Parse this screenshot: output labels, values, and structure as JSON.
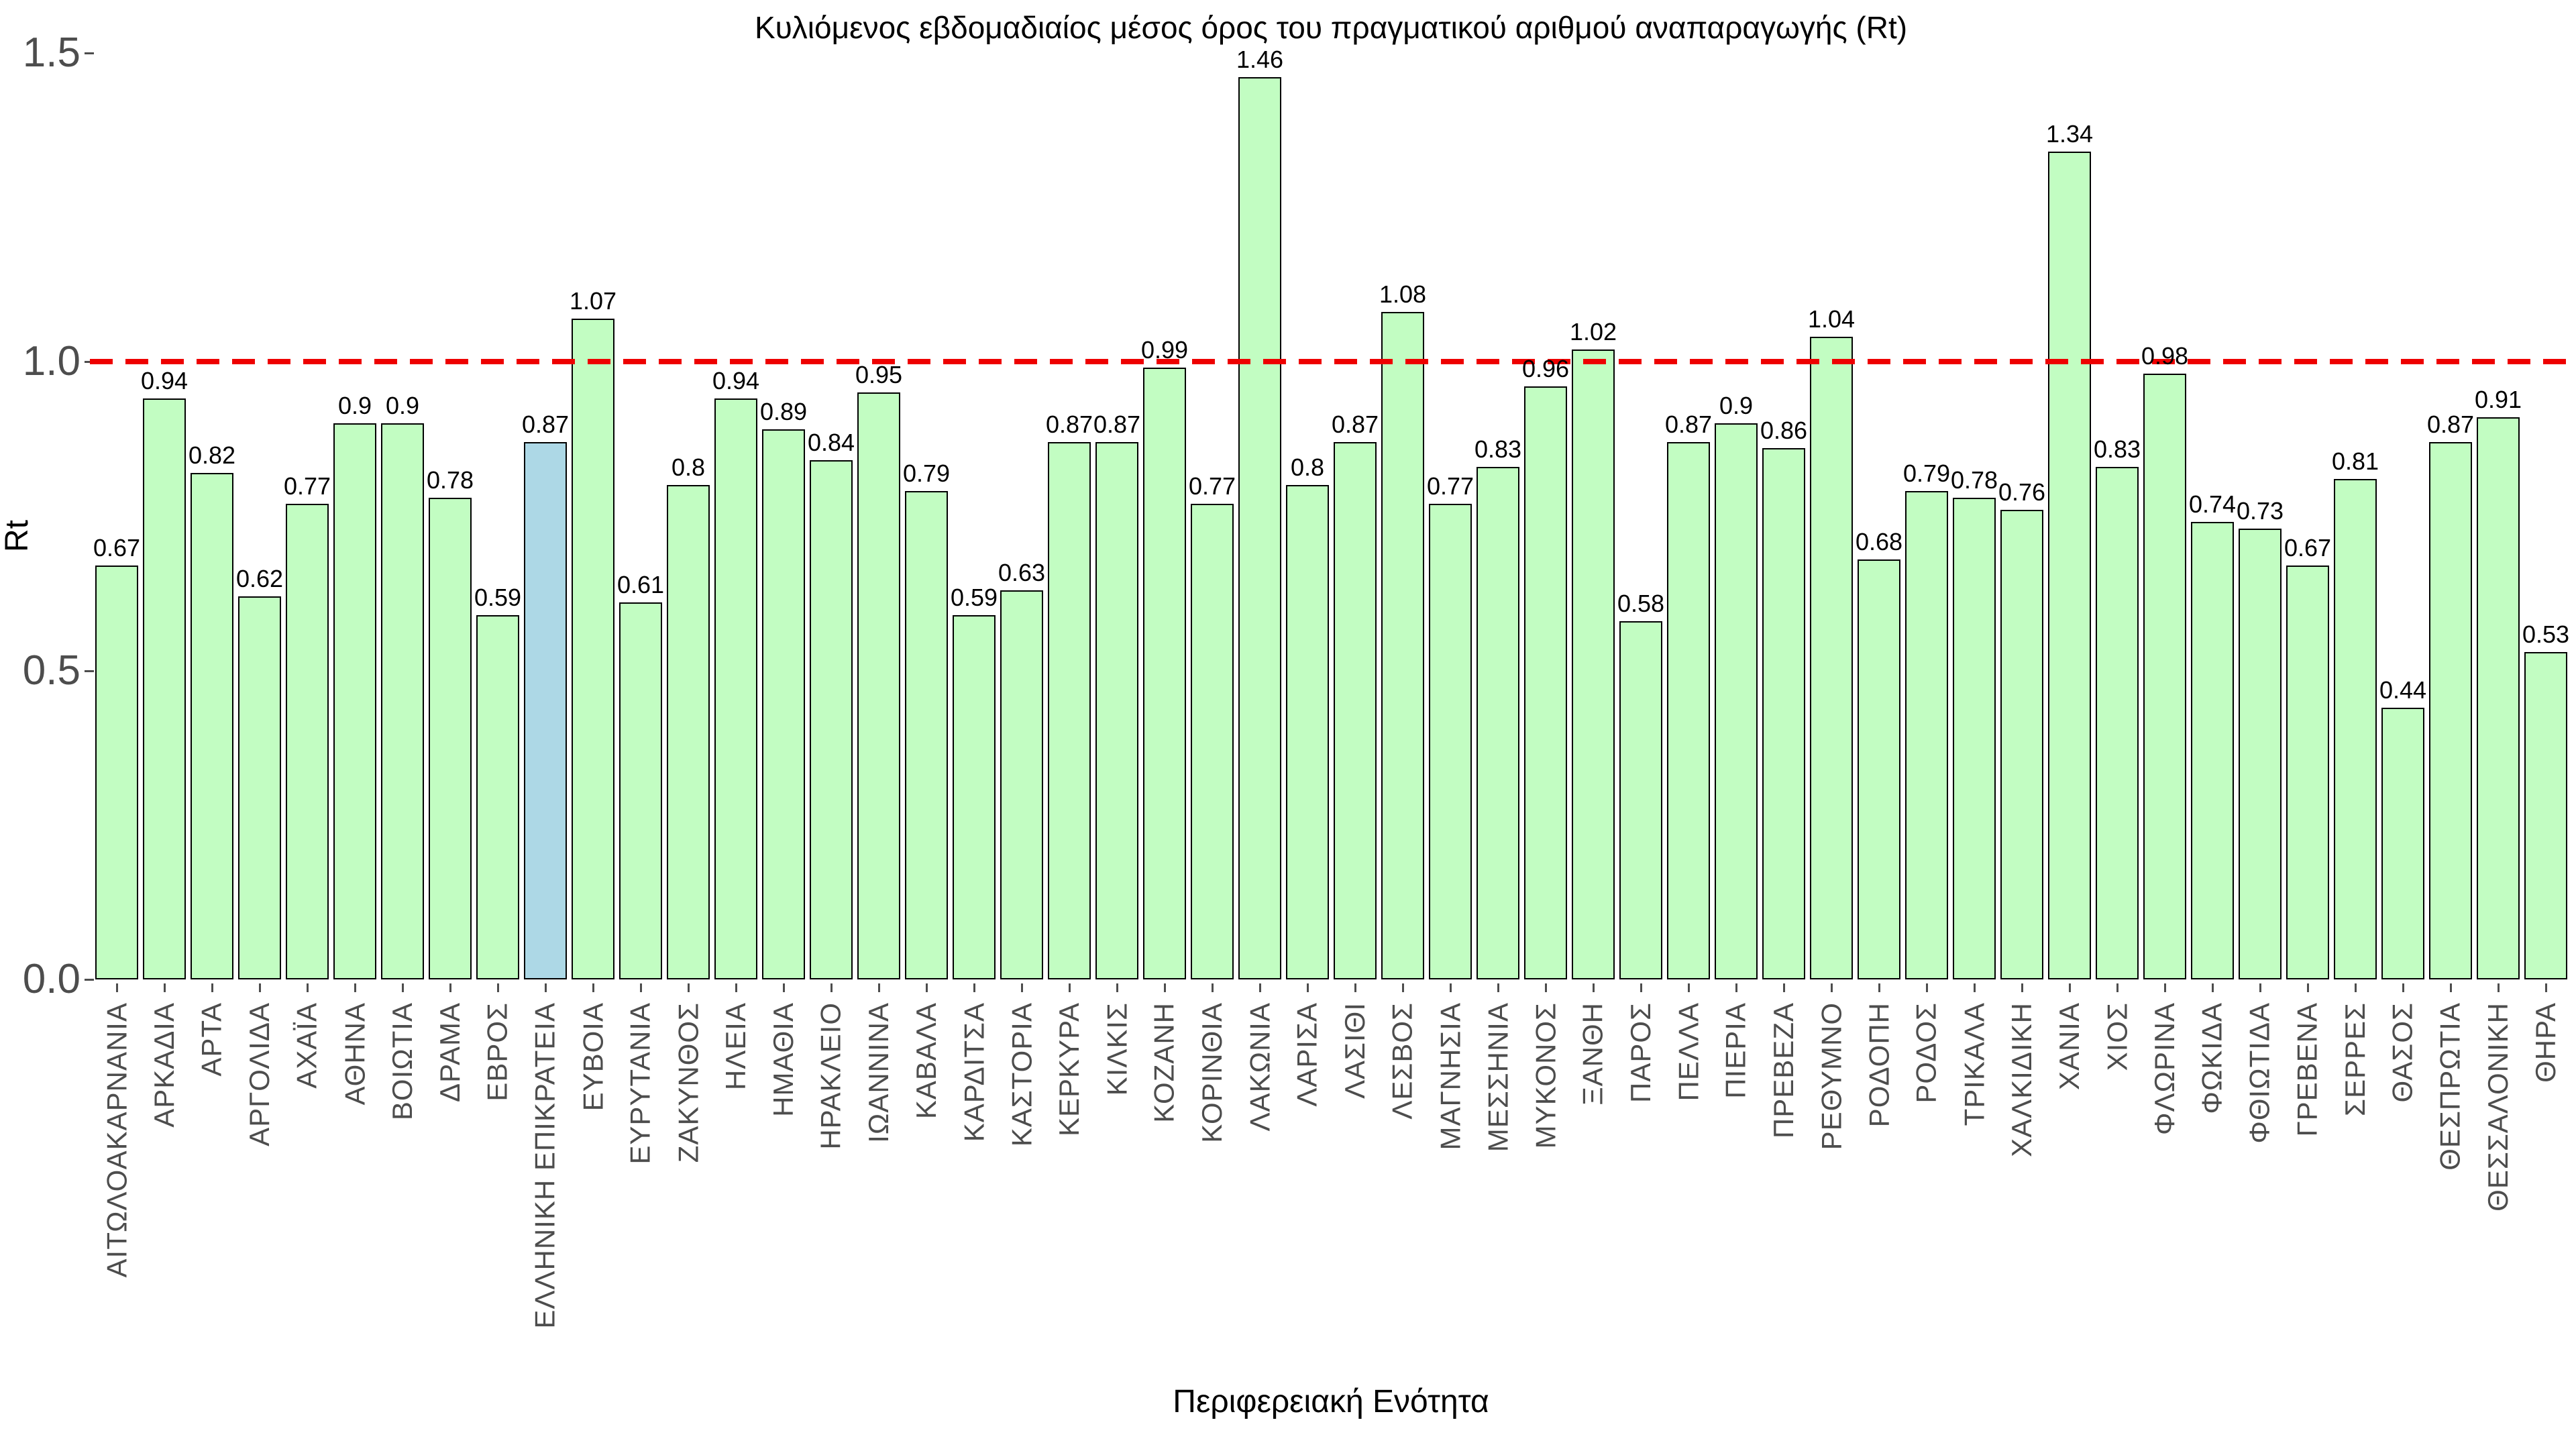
{
  "title": "Κυλιόμενος εβδομαδιαίος μέσος όρος του πραγματικού αριθμού αναπαραγωγής (Rt)",
  "axes": {
    "x_label": "Περιφερειακή Ενότητα",
    "y_label": "Rt",
    "y_tick_labels": [
      "0.0",
      "0.5",
      "1.0",
      "1.5"
    ],
    "y_tick_values": [
      0,
      0.5,
      1.0,
      1.5
    ]
  },
  "reference_line": {
    "value": 1.0,
    "color": "#ee0000",
    "style": "dashed"
  },
  "colors": {
    "bar_fill": "#c2fdc2",
    "highlight_fill": "#add8e6",
    "bar_border": "#000000",
    "tick_text": "#4d4d4d",
    "reference_red": "#ee0000"
  },
  "chart_data": {
    "type": "bar",
    "title": "Κυλιόμενος εβδομαδιαίος μέσος όρος του πραγματικού αριθμού αναπαραγωγής (Rt)",
    "xlabel": "Περιφερειακή Ενότητα",
    "ylabel": "Rt",
    "ylim": [
      0,
      1.5
    ],
    "grid": false,
    "legend": false,
    "reference_line_y": 1.0,
    "highlight_category": "ΕΛΛΗΝΙΚΗ ΕΠΙΚΡΑΤΕΙΑ",
    "highlight_index": 9,
    "categories": [
      "ΑΙΤΩΛΟΑΚΑΡΝΑΝΙΑ",
      "ΑΡΚΑΔΙΑ",
      "ΑΡΤΑ",
      "ΑΡΓΟΛΙΔΑ",
      "ΑΧΑΪΑ",
      "ΑΘΗΝΑ",
      "ΒΟΙΩΤΙΑ",
      "ΔΡΑΜΑ",
      "ΕΒΡΟΣ",
      "ΕΛΛΗΝΙΚΗ ΕΠΙΚΡΑΤΕΙΑ",
      "ΕΥΒΟΙΑ",
      "ΕΥΡΥΤΑΝΙΑ",
      "ΖΑΚΥΝΘΟΣ",
      "ΗΛΕΙΑ",
      "ΗΜΑΘΙΑ",
      "ΗΡΑΚΛΕΙΟ",
      "ΙΩΑΝΝΙΝΑ",
      "ΚΑΒΑΛΑ",
      "ΚΑΡΔΙΤΣΑ",
      "ΚΑΣΤΟΡΙΑ",
      "ΚΕΡΚΥΡΑ",
      "ΚΙΛΚΙΣ",
      "ΚΟΖΑΝΗ",
      "ΚΟΡΙΝΘΙΑ",
      "ΛΑΚΩΝΙΑ",
      "ΛΑΡΙΣΑ",
      "ΛΑΣΙΘΙ",
      "ΛΕΣΒΟΣ",
      "ΜΑΓΝΗΣΙΑ",
      "ΜΕΣΣΗΝΙΑ",
      "ΜΥΚΟΝΟΣ",
      "ΞΑΝΘΗ",
      "ΠΑΡΟΣ",
      "ΠΕΛΛΑ",
      "ΠΙΕΡΙΑ",
      "ΠΡΕΒΕΖΑ",
      "ΡΕΘΥΜΝΟ",
      "ΡΟΔΟΠΗ",
      "ΡΟΔΟΣ",
      "ΤΡΙΚΑΛΑ",
      "ΧΑΛΚΙΔΙΚΗ",
      "ΧΑΝΙΑ",
      "ΧΙΟΣ",
      "ΦΛΩΡΙΝΑ",
      "ΦΩΚΙΔΑ",
      "ΦΘΙΩΤΙΔΑ",
      "ΓΡΕΒΕΝΑ",
      "ΣΕΡΡΕΣ",
      "ΘΑΣΟΣ",
      "ΘΕΣΠΡΩΤΙΑ",
      "ΘΕΣΣΑΛΟΝΙΚΗ",
      "ΘΗΡΑ"
    ],
    "values": [
      0.67,
      0.94,
      0.82,
      0.62,
      0.77,
      0.9,
      0.9,
      0.78,
      0.59,
      0.87,
      1.07,
      0.61,
      0.8,
      0.94,
      0.89,
      0.84,
      0.95,
      0.79,
      0.59,
      0.63,
      0.87,
      0.87,
      0.99,
      0.77,
      1.46,
      0.8,
      0.87,
      1.08,
      0.77,
      0.83,
      0.96,
      1.02,
      0.58,
      0.87,
      0.9,
      0.86,
      1.04,
      0.68,
      0.79,
      0.78,
      0.76,
      1.34,
      0.83,
      0.98,
      0.74,
      0.73,
      0.67,
      0.81,
      0.44,
      0.87,
      0.91,
      0.53
    ],
    "value_labels": [
      "0.67",
      "0.94",
      "0.82",
      "0.62",
      "0.77",
      "0.9",
      "0.9",
      "0.78",
      "0.59",
      "0.87",
      "1.07",
      "0.61",
      "0.8",
      "0.94",
      "0.89",
      "0.84",
      "0.95",
      "0.79",
      "0.59",
      "0.63",
      "0.87",
      "0.87",
      "0.99",
      "0.77",
      "1.46",
      "0.8",
      "0.87",
      "1.08",
      "0.77",
      "0.83",
      "0.96",
      "1.02",
      "0.58",
      "0.87",
      "0.9",
      "0.86",
      "1.04",
      "0.68",
      "0.79",
      "0.78",
      "0.76",
      "1.34",
      "0.83",
      "0.98",
      "0.74",
      "0.73",
      "0.67",
      "0.81",
      "0.44",
      "0.87",
      "0.91",
      "0.53"
    ]
  }
}
